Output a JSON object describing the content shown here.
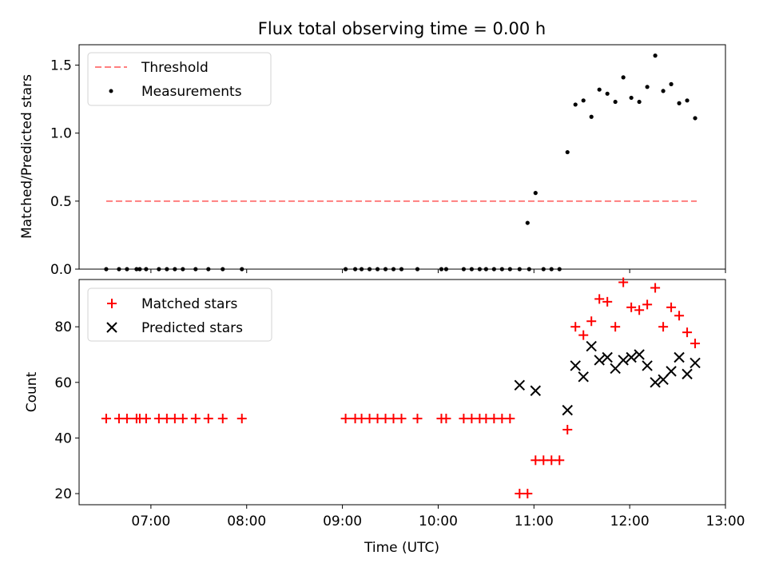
{
  "chart_data": {
    "title": "Flux total observing time = 0.00 h",
    "xlabel": "Time (UTC)",
    "xlim": [
      "06:15",
      "13:00"
    ],
    "xticks": [
      "07:00",
      "08:00",
      "09:00",
      "10:00",
      "11:00",
      "12:00",
      "13:00"
    ],
    "panels": [
      {
        "type": "scatter",
        "ylabel": "Matched/Predicted stars",
        "ylim": [
          0,
          1.65
        ],
        "yticks": [
          "0.0",
          "0.5",
          "1.0",
          "1.5"
        ],
        "legend_position": "top-left",
        "threshold": {
          "name": "Threshold",
          "value": 0.5,
          "x_start": "06:32",
          "x_end": "12:42",
          "color": "#ff7f7f"
        },
        "series": [
          {
            "name": "Measurements",
            "marker": "dot",
            "color": "#000000",
            "x": [
              "06:32",
              "06:40",
              "06:45",
              "06:51",
              "06:53",
              "06:57",
              "07:05",
              "07:10",
              "07:15",
              "07:20",
              "07:28",
              "07:36",
              "07:45",
              "07:57",
              "09:02",
              "09:08",
              "09:12",
              "09:17",
              "09:22",
              "09:27",
              "09:32",
              "09:37",
              "09:47",
              "10:02",
              "10:05",
              "10:16",
              "10:21",
              "10:26",
              "10:30",
              "10:35",
              "10:40",
              "10:45",
              "10:51",
              "10:56",
              "10:57",
              "11:01",
              "11:06",
              "11:11",
              "11:16",
              "11:21",
              "11:26",
              "11:31",
              "11:36",
              "11:41",
              "11:46",
              "11:51",
              "11:56",
              "12:01",
              "12:06",
              "12:11",
              "12:16",
              "12:21",
              "12:26",
              "12:31",
              "12:36",
              "12:41"
            ],
            "y": [
              0,
              0,
              0,
              0,
              0,
              0,
              0,
              0,
              0,
              0,
              0,
              0,
              0,
              0,
              0,
              0,
              0,
              0,
              0,
              0,
              0,
              0,
              0,
              0,
              0,
              0,
              0,
              0,
              0,
              0,
              0,
              0,
              0,
              0.34,
              0,
              0.56,
              0,
              0,
              0,
              0.86,
              1.21,
              1.24,
              1.12,
              1.32,
              1.29,
              1.23,
              1.41,
              1.26,
              1.23,
              1.34,
              1.57,
              1.31,
              1.36,
              1.22,
              1.24,
              1.11
            ]
          }
        ]
      },
      {
        "type": "scatter",
        "ylabel": "Count",
        "ylim": [
          16,
          97
        ],
        "yticks": [
          "20",
          "40",
          "60",
          "80"
        ],
        "legend_position": "top-left",
        "series": [
          {
            "name": "Matched stars",
            "marker": "plus",
            "color": "#ff0000",
            "x": [
              "06:32",
              "06:40",
              "06:45",
              "06:51",
              "06:53",
              "06:57",
              "07:05",
              "07:10",
              "07:15",
              "07:20",
              "07:28",
              "07:36",
              "07:45",
              "07:57",
              "09:02",
              "09:08",
              "09:12",
              "09:17",
              "09:22",
              "09:27",
              "09:32",
              "09:37",
              "09:47",
              "10:02",
              "10:05",
              "10:16",
              "10:21",
              "10:26",
              "10:30",
              "10:35",
              "10:40",
              "10:45",
              "10:51",
              "10:56",
              "11:01",
              "11:06",
              "11:11",
              "11:16",
              "11:21",
              "11:26",
              "11:31",
              "11:36",
              "11:41",
              "11:46",
              "11:51",
              "11:56",
              "12:01",
              "12:06",
              "12:11",
              "12:16",
              "12:21",
              "12:26",
              "12:31",
              "12:36",
              "12:41"
            ],
            "y": [
              47,
              47,
              47,
              47,
              47,
              47,
              47,
              47,
              47,
              47,
              47,
              47,
              47,
              47,
              47,
              47,
              47,
              47,
              47,
              47,
              47,
              47,
              47,
              47,
              47,
              47,
              47,
              47,
              47,
              47,
              47,
              47,
              20,
              20,
              32,
              32,
              32,
              32,
              43,
              80,
              77,
              82,
              90,
              89,
              80,
              96,
              87,
              86,
              88,
              94,
              80,
              87,
              84,
              78,
              74
            ]
          },
          {
            "name": "Predicted stars",
            "marker": "x",
            "color": "#000000",
            "x": [
              "10:51",
              "11:01",
              "11:21",
              "11:26",
              "11:31",
              "11:36",
              "11:41",
              "11:46",
              "11:51",
              "11:56",
              "12:01",
              "12:06",
              "12:11",
              "12:16",
              "12:21",
              "12:26",
              "12:31",
              "12:36",
              "12:41"
            ],
            "y": [
              59,
              57,
              50,
              66,
              62,
              73,
              68,
              69,
              65,
              68,
              69,
              70,
              66,
              60,
              61,
              64,
              69,
              63,
              67
            ]
          }
        ]
      }
    ]
  }
}
